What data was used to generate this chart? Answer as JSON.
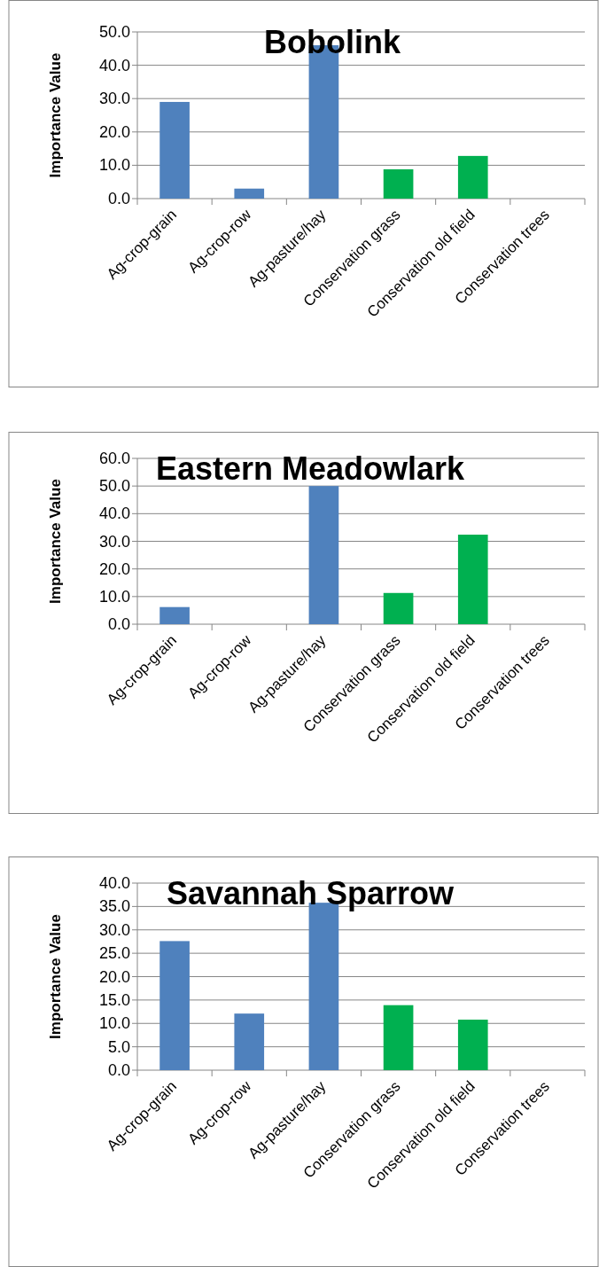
{
  "chart_data": [
    {
      "type": "bar",
      "title": "Bobolink",
      "ylabel": "Importance Value",
      "categories": [
        "Ag-crop-grain",
        "Ag-crop-row",
        "Ag-pasture/hay",
        "Conservation grass",
        "Conservation old field",
        "Conservation trees"
      ],
      "values": [
        29.0,
        3.0,
        46.0,
        8.8,
        12.8,
        0
      ],
      "colors": [
        "#4f81bd",
        "#4f81bd",
        "#4f81bd",
        "#00b050",
        "#00b050",
        "#00b050"
      ],
      "ylim": [
        0,
        50
      ],
      "yticks": [
        {
          "value": 0,
          "label": "0.0"
        },
        {
          "value": 10,
          "label": "10.0"
        },
        {
          "value": 20,
          "label": "20.0"
        },
        {
          "value": 30,
          "label": "30.0"
        },
        {
          "value": 40,
          "label": "40.0"
        },
        {
          "value": 50,
          "label": "50.0"
        }
      ],
      "grid": "y"
    },
    {
      "type": "bar",
      "title": "Eastern Meadowlark",
      "ylabel": "Importance Value",
      "categories": [
        "Ag-crop-grain",
        "Ag-crop-row",
        "Ag-pasture/hay",
        "Conservation grass",
        "Conservation old field",
        "Conservation trees"
      ],
      "values": [
        6.2,
        0,
        50.0,
        11.3,
        32.4,
        0
      ],
      "colors": [
        "#4f81bd",
        "#4f81bd",
        "#4f81bd",
        "#00b050",
        "#00b050",
        "#00b050"
      ],
      "ylim": [
        0,
        60
      ],
      "yticks": [
        {
          "value": 0,
          "label": "0.0"
        },
        {
          "value": 10,
          "label": "10.0"
        },
        {
          "value": 20,
          "label": "20.0"
        },
        {
          "value": 30,
          "label": "30.0"
        },
        {
          "value": 40,
          "label": "40.0"
        },
        {
          "value": 50,
          "label": "50.0"
        },
        {
          "value": 60,
          "label": "60.0"
        }
      ],
      "grid": "y"
    },
    {
      "type": "bar",
      "title": "Savannah Sparrow",
      "ylabel": "Importance Value",
      "categories": [
        "Ag-crop-grain",
        "Ag-crop-row",
        "Ag-pasture/hay",
        "Conservation grass",
        "Conservation old field",
        "Conservation trees"
      ],
      "values": [
        27.6,
        12.1,
        35.8,
        13.9,
        10.8,
        0
      ],
      "colors": [
        "#4f81bd",
        "#4f81bd",
        "#4f81bd",
        "#00b050",
        "#00b050",
        "#00b050"
      ],
      "ylim": [
        0,
        40
      ],
      "yticks": [
        {
          "value": 0,
          "label": "0.0"
        },
        {
          "value": 5,
          "label": "5.0"
        },
        {
          "value": 10,
          "label": "10.0"
        },
        {
          "value": 15,
          "label": "15.0"
        },
        {
          "value": 20,
          "label": "20.0"
        },
        {
          "value": 25,
          "label": "25.0"
        },
        {
          "value": 30,
          "label": "30.0"
        },
        {
          "value": 35,
          "label": "35.0"
        },
        {
          "value": 40,
          "label": "40.0"
        }
      ],
      "grid": "y"
    }
  ]
}
